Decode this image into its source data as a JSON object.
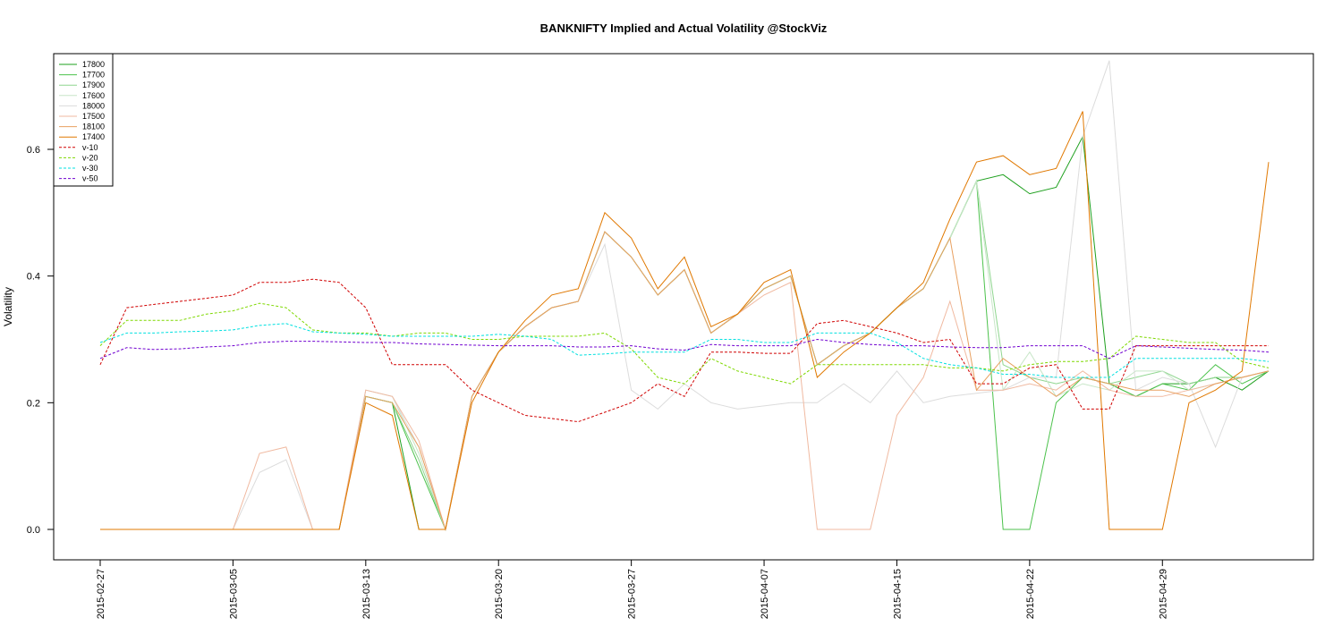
{
  "chart_data": {
    "type": "line",
    "title": "BANKNIFTY Implied and Actual Volatility @StockViz",
    "xlabel": "",
    "ylabel": "Volatility",
    "ylim": [
      -0.05,
      0.75
    ],
    "yticks": [
      0.0,
      0.2,
      0.4,
      0.6
    ],
    "ytick_labels": [
      "0.0",
      "0.2",
      "0.4",
      "0.6"
    ],
    "xtick_labels": [
      "2015-02-27",
      "2015-03-05",
      "2015-03-13",
      "2015-03-20",
      "2015-03-27",
      "2015-04-07",
      "2015-04-15",
      "2015-04-22",
      "2015-04-29"
    ],
    "xtick_index": [
      0,
      5,
      10,
      15,
      20,
      25,
      30,
      35,
      40
    ],
    "n_points": 45,
    "grid": false,
    "legend_position": "top-left",
    "series": [
      {
        "name": "17800",
        "color": "#1ea01e",
        "dash": "solid",
        "values": [
          0,
          0,
          0,
          0,
          0,
          0,
          0,
          0,
          0,
          0,
          0.21,
          0.2,
          0,
          0,
          0.21,
          0.28,
          0.32,
          0.35,
          0.36,
          0.47,
          0.43,
          0.37,
          0.41,
          0.31,
          0.34,
          0.38,
          0.4,
          0.26,
          0.29,
          0.31,
          0.35,
          0.38,
          0.46,
          0.55,
          0.56,
          0.53,
          0.54,
          0.62,
          0.23,
          0.21,
          0.23,
          0.23,
          0.24,
          0.22,
          0.25
        ]
      },
      {
        "name": "17700",
        "color": "#4cc24c",
        "dash": "solid",
        "values": [
          0,
          0,
          0,
          0,
          0,
          0,
          0,
          0,
          0,
          0,
          0.21,
          0.2,
          0.1,
          0,
          0.21,
          0.28,
          0.32,
          0.35,
          0.36,
          0.47,
          0.43,
          0.37,
          0.41,
          0.31,
          0.34,
          0.38,
          0.4,
          0.26,
          0.29,
          0.31,
          0.35,
          0.38,
          0.46,
          0.55,
          0,
          0,
          0.2,
          0.24,
          0.23,
          0.21,
          0.23,
          0.22,
          0.26,
          0.23,
          0.25
        ]
      },
      {
        "name": "17900",
        "color": "#8fd68f",
        "dash": "solid",
        "values": [
          0,
          0,
          0,
          0,
          0,
          0,
          0,
          0,
          0,
          0,
          0.21,
          0.2,
          0.11,
          0,
          0.21,
          0.28,
          0.32,
          0.35,
          0.36,
          0.47,
          0.43,
          0.37,
          0.41,
          0.31,
          0.34,
          0.38,
          0.4,
          0.26,
          0.29,
          0.31,
          0.35,
          0.38,
          0.46,
          0.55,
          0.26,
          0.24,
          0.23,
          0.24,
          0.23,
          0.24,
          0.25,
          0.23,
          0.24,
          0.24,
          0.25
        ]
      },
      {
        "name": "17600",
        "color": "#c8e6c8",
        "dash": "solid",
        "values": [
          0,
          0,
          0,
          0,
          0,
          0,
          0,
          0,
          0,
          0,
          0.22,
          0.21,
          0.12,
          0,
          0.21,
          0.28,
          0.32,
          0.35,
          0.36,
          0.47,
          0.43,
          0.37,
          0.41,
          0.31,
          0.34,
          0.38,
          0.4,
          0.26,
          0.29,
          0.31,
          0.35,
          0.38,
          0.46,
          0.55,
          0.22,
          0.28,
          0.21,
          0.23,
          0.22,
          0.25,
          0.25,
          0.22,
          0.23,
          0.24,
          0.25
        ]
      },
      {
        "name": "18000",
        "color": "#dcdcdc",
        "dash": "solid",
        "values": [
          0,
          0,
          0,
          0,
          0,
          0,
          0.09,
          0.11,
          0,
          0,
          0.22,
          0.21,
          0.13,
          0,
          0.21,
          0.28,
          0.32,
          0.35,
          0.36,
          0.45,
          0.22,
          0.19,
          0.23,
          0.2,
          0.19,
          0.195,
          0.2,
          0.2,
          0.23,
          0.2,
          0.25,
          0.2,
          0.21,
          0.215,
          0.22,
          0.24,
          0.24,
          0.62,
          0.74,
          0.22,
          0.24,
          0.23,
          0.13,
          0.24,
          0.25
        ]
      },
      {
        "name": "17500",
        "color": "#f0b9a0",
        "dash": "solid",
        "values": [
          0,
          0,
          0,
          0,
          0,
          0,
          0.12,
          0.13,
          0,
          0,
          0.22,
          0.21,
          0.14,
          0,
          0.21,
          0.28,
          0.32,
          0.35,
          0.36,
          0.47,
          0.43,
          0.37,
          0.41,
          0.31,
          0.34,
          0.37,
          0.39,
          0,
          0,
          0,
          0.18,
          0.24,
          0.36,
          0.22,
          0.22,
          0.23,
          0.22,
          0.25,
          0.22,
          0.21,
          0.21,
          0.22,
          0.23,
          0.24,
          0.25
        ]
      },
      {
        "name": "18100",
        "color": "#e8a060",
        "dash": "solid",
        "values": [
          0,
          0,
          0,
          0,
          0,
          0,
          0,
          0,
          0,
          0,
          0.21,
          0.2,
          0.13,
          0,
          0.21,
          0.28,
          0.32,
          0.35,
          0.36,
          0.47,
          0.43,
          0.37,
          0.41,
          0.31,
          0.34,
          0.38,
          0.4,
          0.26,
          0.29,
          0.31,
          0.35,
          0.38,
          0.46,
          0.22,
          0.27,
          0.24,
          0.21,
          0.24,
          0.23,
          0.22,
          0.22,
          0.21,
          0.23,
          0.24,
          0.25
        ]
      },
      {
        "name": "17400",
        "color": "#e07800",
        "dash": "solid",
        "values": [
          0,
          0,
          0,
          0,
          0,
          0,
          0,
          0,
          0,
          0,
          0.2,
          0.18,
          0,
          0,
          0.2,
          0.28,
          0.33,
          0.37,
          0.38,
          0.5,
          0.46,
          0.38,
          0.43,
          0.32,
          0.34,
          0.39,
          0.41,
          0.24,
          0.28,
          0.31,
          0.35,
          0.39,
          0.49,
          0.58,
          0.59,
          0.56,
          0.57,
          0.66,
          0,
          0,
          0,
          0.2,
          0.22,
          0.25,
          0.58
        ]
      },
      {
        "name": "v-10",
        "color": "#d00000",
        "dash": "3,2",
        "values": [
          0.26,
          0.35,
          0.355,
          0.36,
          0.365,
          0.37,
          0.39,
          0.39,
          0.395,
          0.39,
          0.35,
          0.26,
          0.26,
          0.26,
          0.22,
          0.2,
          0.18,
          0.175,
          0.17,
          0.185,
          0.2,
          0.23,
          0.21,
          0.28,
          0.28,
          0.278,
          0.278,
          0.325,
          0.33,
          0.32,
          0.31,
          0.295,
          0.3,
          0.23,
          0.23,
          0.255,
          0.26,
          0.19,
          0.19,
          0.29,
          0.29,
          0.29,
          0.29,
          0.29,
          0.29
        ]
      },
      {
        "name": "v-20",
        "color": "#7ed800",
        "dash": "3,2",
        "values": [
          0.29,
          0.33,
          0.33,
          0.33,
          0.34,
          0.345,
          0.357,
          0.35,
          0.315,
          0.31,
          0.31,
          0.305,
          0.31,
          0.31,
          0.3,
          0.3,
          0.305,
          0.305,
          0.305,
          0.31,
          0.285,
          0.24,
          0.23,
          0.27,
          0.25,
          0.24,
          0.23,
          0.26,
          0.26,
          0.26,
          0.26,
          0.26,
          0.255,
          0.255,
          0.25,
          0.26,
          0.265,
          0.265,
          0.27,
          0.305,
          0.3,
          0.295,
          0.295,
          0.265,
          0.255
        ]
      },
      {
        "name": "v-30",
        "color": "#00e0e0",
        "dash": "3,2",
        "values": [
          0.295,
          0.31,
          0.31,
          0.312,
          0.313,
          0.315,
          0.322,
          0.325,
          0.312,
          0.31,
          0.308,
          0.305,
          0.305,
          0.305,
          0.305,
          0.308,
          0.305,
          0.3,
          0.275,
          0.277,
          0.28,
          0.28,
          0.28,
          0.3,
          0.3,
          0.295,
          0.295,
          0.31,
          0.31,
          0.31,
          0.295,
          0.27,
          0.26,
          0.255,
          0.245,
          0.245,
          0.24,
          0.24,
          0.24,
          0.27,
          0.27,
          0.27,
          0.27,
          0.27,
          0.265
        ]
      },
      {
        "name": "v-50",
        "color": "#7000d0",
        "dash": "3,2",
        "values": [
          0.27,
          0.287,
          0.284,
          0.285,
          0.288,
          0.29,
          0.295,
          0.297,
          0.297,
          0.296,
          0.295,
          0.295,
          0.293,
          0.292,
          0.291,
          0.29,
          0.29,
          0.29,
          0.288,
          0.288,
          0.29,
          0.285,
          0.283,
          0.292,
          0.29,
          0.29,
          0.29,
          0.3,
          0.295,
          0.292,
          0.29,
          0.29,
          0.288,
          0.287,
          0.287,
          0.29,
          0.29,
          0.29,
          0.27,
          0.29,
          0.288,
          0.286,
          0.284,
          0.283,
          0.28
        ]
      }
    ]
  }
}
